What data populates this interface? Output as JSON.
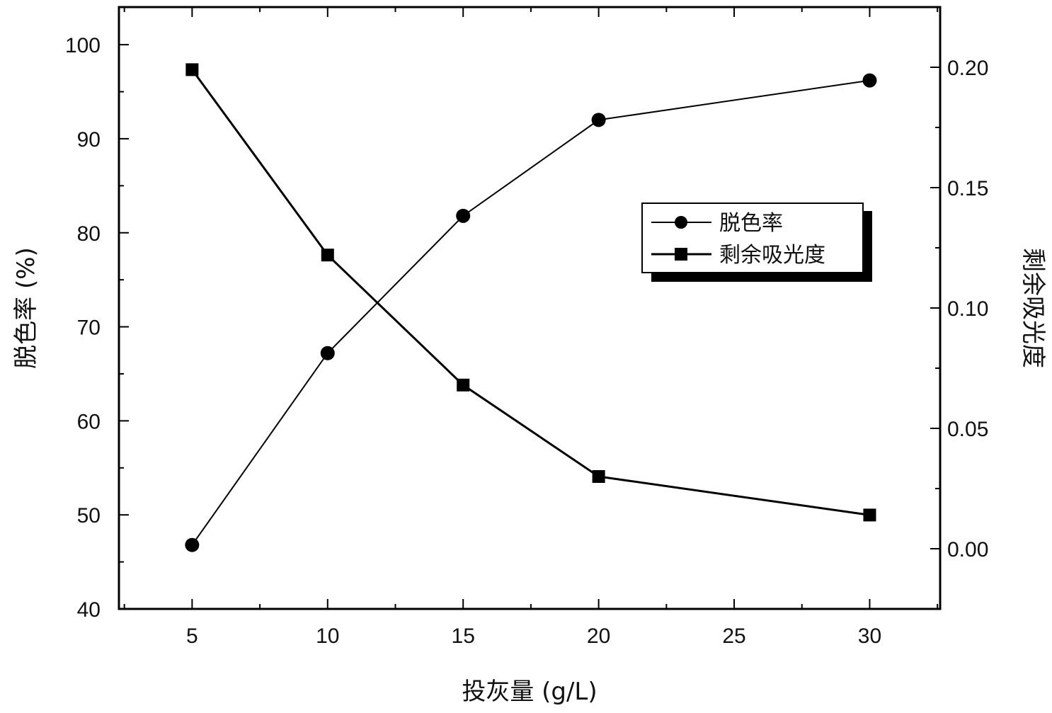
{
  "chart_data": {
    "type": "line",
    "x": [
      5,
      10,
      15,
      20,
      30
    ],
    "xlabel": "投灰量 (g/L)",
    "xlim": [
      2.3,
      32.6
    ],
    "xticks": [
      5,
      10,
      15,
      20,
      25,
      30
    ],
    "ylabel_left": "脱色率 (%)",
    "ylim_left": [
      40,
      104
    ],
    "yticks_left": [
      40,
      50,
      60,
      70,
      80,
      90,
      100
    ],
    "ylabel_right": "剩余吸光度",
    "ylim_right": [
      -0.025,
      0.225
    ],
    "yticks_right": [
      "0.00",
      "0.05",
      "0.10",
      "0.15",
      "0.20"
    ],
    "grid": false,
    "legend_position": "center-right",
    "series": [
      {
        "name": "脱色率",
        "axis": "left",
        "marker": "circle",
        "values": [
          46.8,
          67.2,
          81.8,
          92.0,
          96.2
        ]
      },
      {
        "name": "剩余吸光度",
        "axis": "right",
        "marker": "square",
        "values": [
          0.199,
          0.122,
          0.068,
          0.03,
          0.014
        ]
      }
    ]
  }
}
